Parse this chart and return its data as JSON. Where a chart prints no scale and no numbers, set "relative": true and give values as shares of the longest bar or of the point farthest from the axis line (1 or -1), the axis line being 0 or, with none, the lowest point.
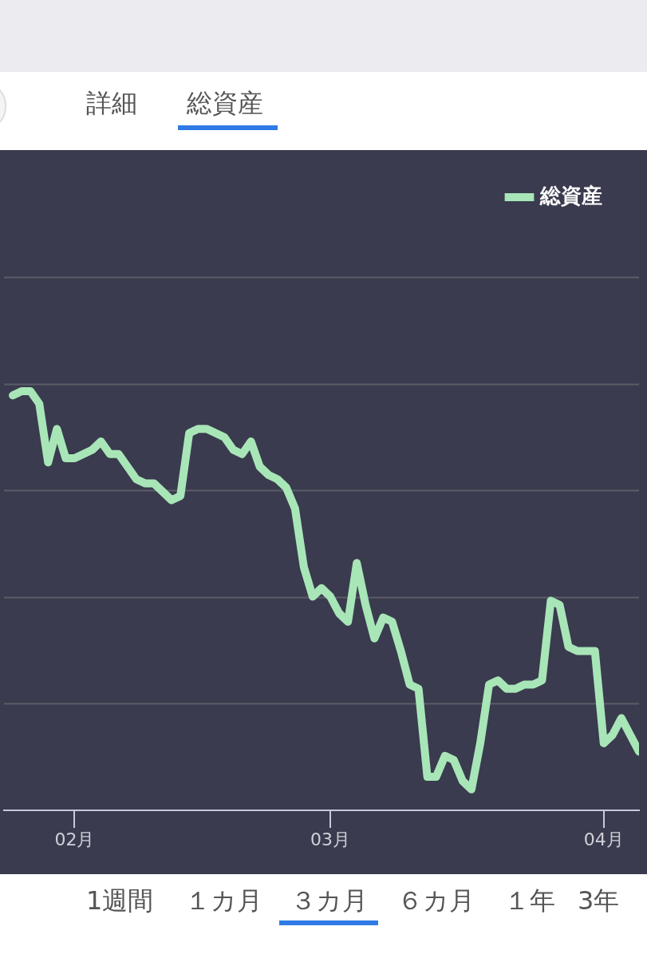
{
  "chart_data": {
    "type": "line",
    "relative": true,
    "grid": "y",
    "legend": "top right",
    "marker": "none",
    "line_style": "solid",
    "annotations": [
      "詳細",
      "総資産",
      "1週間",
      "１カ月",
      "３カ月",
      "６カ月",
      "１年",
      "3年"
    ],
    "xlim": [
      "--01-24",
      "--04-05"
    ],
    "xticks": [
      {
        "value": "--02-01",
        "label": "02月"
      },
      {
        "value": "--03-01",
        "label": "03月"
      },
      {
        "value": "--04-01",
        "label": "04月"
      }
    ],
    "x": [
      "--01-25",
      "--01-26",
      "--01-27",
      "--01-28",
      "--01-29",
      "--01-30",
      "--01-31",
      "--02-01",
      "--02-02",
      "--02-03",
      "--02-04",
      "--02-05",
      "--02-06",
      "--02-07",
      "--02-08",
      "--02-09",
      "--02-10",
      "--02-11",
      "--02-12",
      "--02-13",
      "--02-14",
      "--02-15",
      "--02-16",
      "--02-17",
      "--02-18",
      "--02-19",
      "--02-20",
      "--02-21",
      "--02-22",
      "--02-23",
      "--02-24",
      "--02-25",
      "--02-26",
      "--02-27",
      "--02-28",
      "--02-29",
      "--03-01",
      "--03-02",
      "--03-03",
      "--03-04",
      "--03-05",
      "--03-06",
      "--03-07",
      "--03-08",
      "--03-09",
      "--03-10",
      "--03-11",
      "--03-12",
      "--03-13",
      "--03-14",
      "--03-15",
      "--03-16",
      "--03-17",
      "--03-18",
      "--03-19",
      "--03-20",
      "--03-21",
      "--03-22",
      "--03-23",
      "--03-24",
      "--03-25",
      "--03-26",
      "--03-27",
      "--03-28",
      "--03-29",
      "--03-30",
      "--03-31",
      "--04-01",
      "--04-02",
      "--04-03",
      "--04-04",
      "--04-05"
    ],
    "series": [
      {
        "name": "総資産",
        "color": "#a8e6b8",
        "values": [
          0.99,
          1.0,
          1.0,
          0.97,
          0.83,
          0.91,
          0.84,
          0.84,
          0.85,
          0.86,
          0.88,
          0.85,
          0.85,
          0.82,
          0.79,
          0.78,
          0.78,
          0.76,
          0.74,
          0.75,
          0.9,
          0.91,
          0.91,
          0.9,
          0.89,
          0.86,
          0.85,
          0.88,
          0.82,
          0.8,
          0.79,
          0.77,
          0.72,
          0.58,
          0.51,
          0.53,
          0.51,
          0.47,
          0.45,
          0.59,
          0.49,
          0.41,
          0.46,
          0.45,
          0.38,
          0.3,
          0.29,
          0.08,
          0.08,
          0.13,
          0.12,
          0.07,
          0.05,
          0.16,
          0.3,
          0.31,
          0.29,
          0.29,
          0.3,
          0.3,
          0.31,
          0.5,
          0.49,
          0.39,
          0.38,
          0.38,
          0.38,
          0.16,
          0.18,
          0.22,
          0.18,
          0.14
        ]
      }
    ]
  }
}
